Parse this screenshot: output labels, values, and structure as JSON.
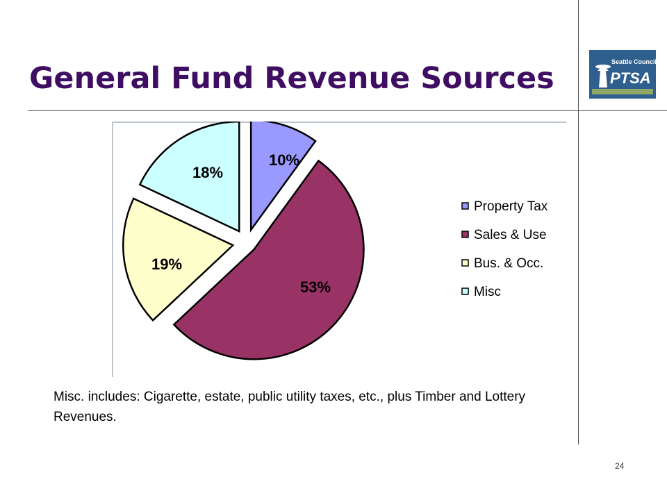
{
  "slide": {
    "title": "General Fund Revenue Sources",
    "note": "Misc. includes: Cigarette, estate, public utility taxes, etc., plus Timber and Lottery Revenues.",
    "page_number": "24",
    "logo": {
      "line1": "Seattle Council",
      "line2": "PTSA",
      "color": "#2f5f8f"
    }
  },
  "chart_data": {
    "type": "pie",
    "exploded": true,
    "legend_position": "right",
    "slices": [
      {
        "name": "Property Tax",
        "value": 10,
        "label": "10%",
        "color": "#9999ff"
      },
      {
        "name": "Sales & Use",
        "value": 53,
        "label": "53%",
        "color": "#993366"
      },
      {
        "name": "Bus. & Occ.",
        "value": 19,
        "label": "19%",
        "color": "#ffffcc"
      },
      {
        "name": "Misc",
        "value": 18,
        "label": "18%",
        "color": "#ccffff"
      }
    ]
  }
}
